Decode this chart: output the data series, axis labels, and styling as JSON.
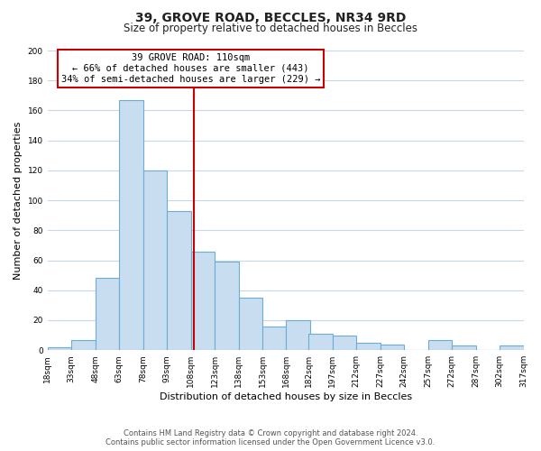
{
  "title": "39, GROVE ROAD, BECCLES, NR34 9RD",
  "subtitle": "Size of property relative to detached houses in Beccles",
  "xlabel": "Distribution of detached houses by size in Beccles",
  "ylabel": "Number of detached properties",
  "bar_edges": [
    18,
    33,
    48,
    63,
    78,
    93,
    108,
    123,
    138,
    153,
    168,
    182,
    197,
    212,
    227,
    242,
    257,
    272,
    287,
    302,
    317
  ],
  "bar_heights": [
    2,
    7,
    48,
    167,
    120,
    93,
    66,
    59,
    35,
    16,
    20,
    11,
    10,
    5,
    4,
    0,
    7,
    3,
    0,
    3
  ],
  "bar_color": "#c9ddf0",
  "bar_edge_color": "#6aaed6",
  "property_line_x": 110,
  "property_line_color": "#cc0000",
  "annotation_line1": "39 GROVE ROAD: 110sqm",
  "annotation_line2": "← 66% of detached houses are smaller (443)",
  "annotation_line3": "34% of semi-detached houses are larger (229) →",
  "annotation_box_color": "#ffffff",
  "annotation_box_edge": "#cc0000",
  "ylim": [
    0,
    200
  ],
  "yticks": [
    0,
    20,
    40,
    60,
    80,
    100,
    120,
    140,
    160,
    180,
    200
  ],
  "footer_line1": "Contains HM Land Registry data © Crown copyright and database right 2024.",
  "footer_line2": "Contains public sector information licensed under the Open Government Licence v3.0.",
  "tick_labels": [
    "18sqm",
    "33sqm",
    "48sqm",
    "63sqm",
    "78sqm",
    "93sqm",
    "108sqm",
    "123sqm",
    "138sqm",
    "153sqm",
    "168sqm",
    "182sqm",
    "197sqm",
    "212sqm",
    "227sqm",
    "242sqm",
    "257sqm",
    "272sqm",
    "287sqm",
    "302sqm",
    "317sqm"
  ],
  "background_color": "#ffffff",
  "grid_color": "#c8d8e8",
  "title_fontsize": 10,
  "subtitle_fontsize": 8.5,
  "xlabel_fontsize": 8,
  "ylabel_fontsize": 8,
  "tick_fontsize": 6.5,
  "annot_fontsize": 7.5,
  "footer_fontsize": 6
}
